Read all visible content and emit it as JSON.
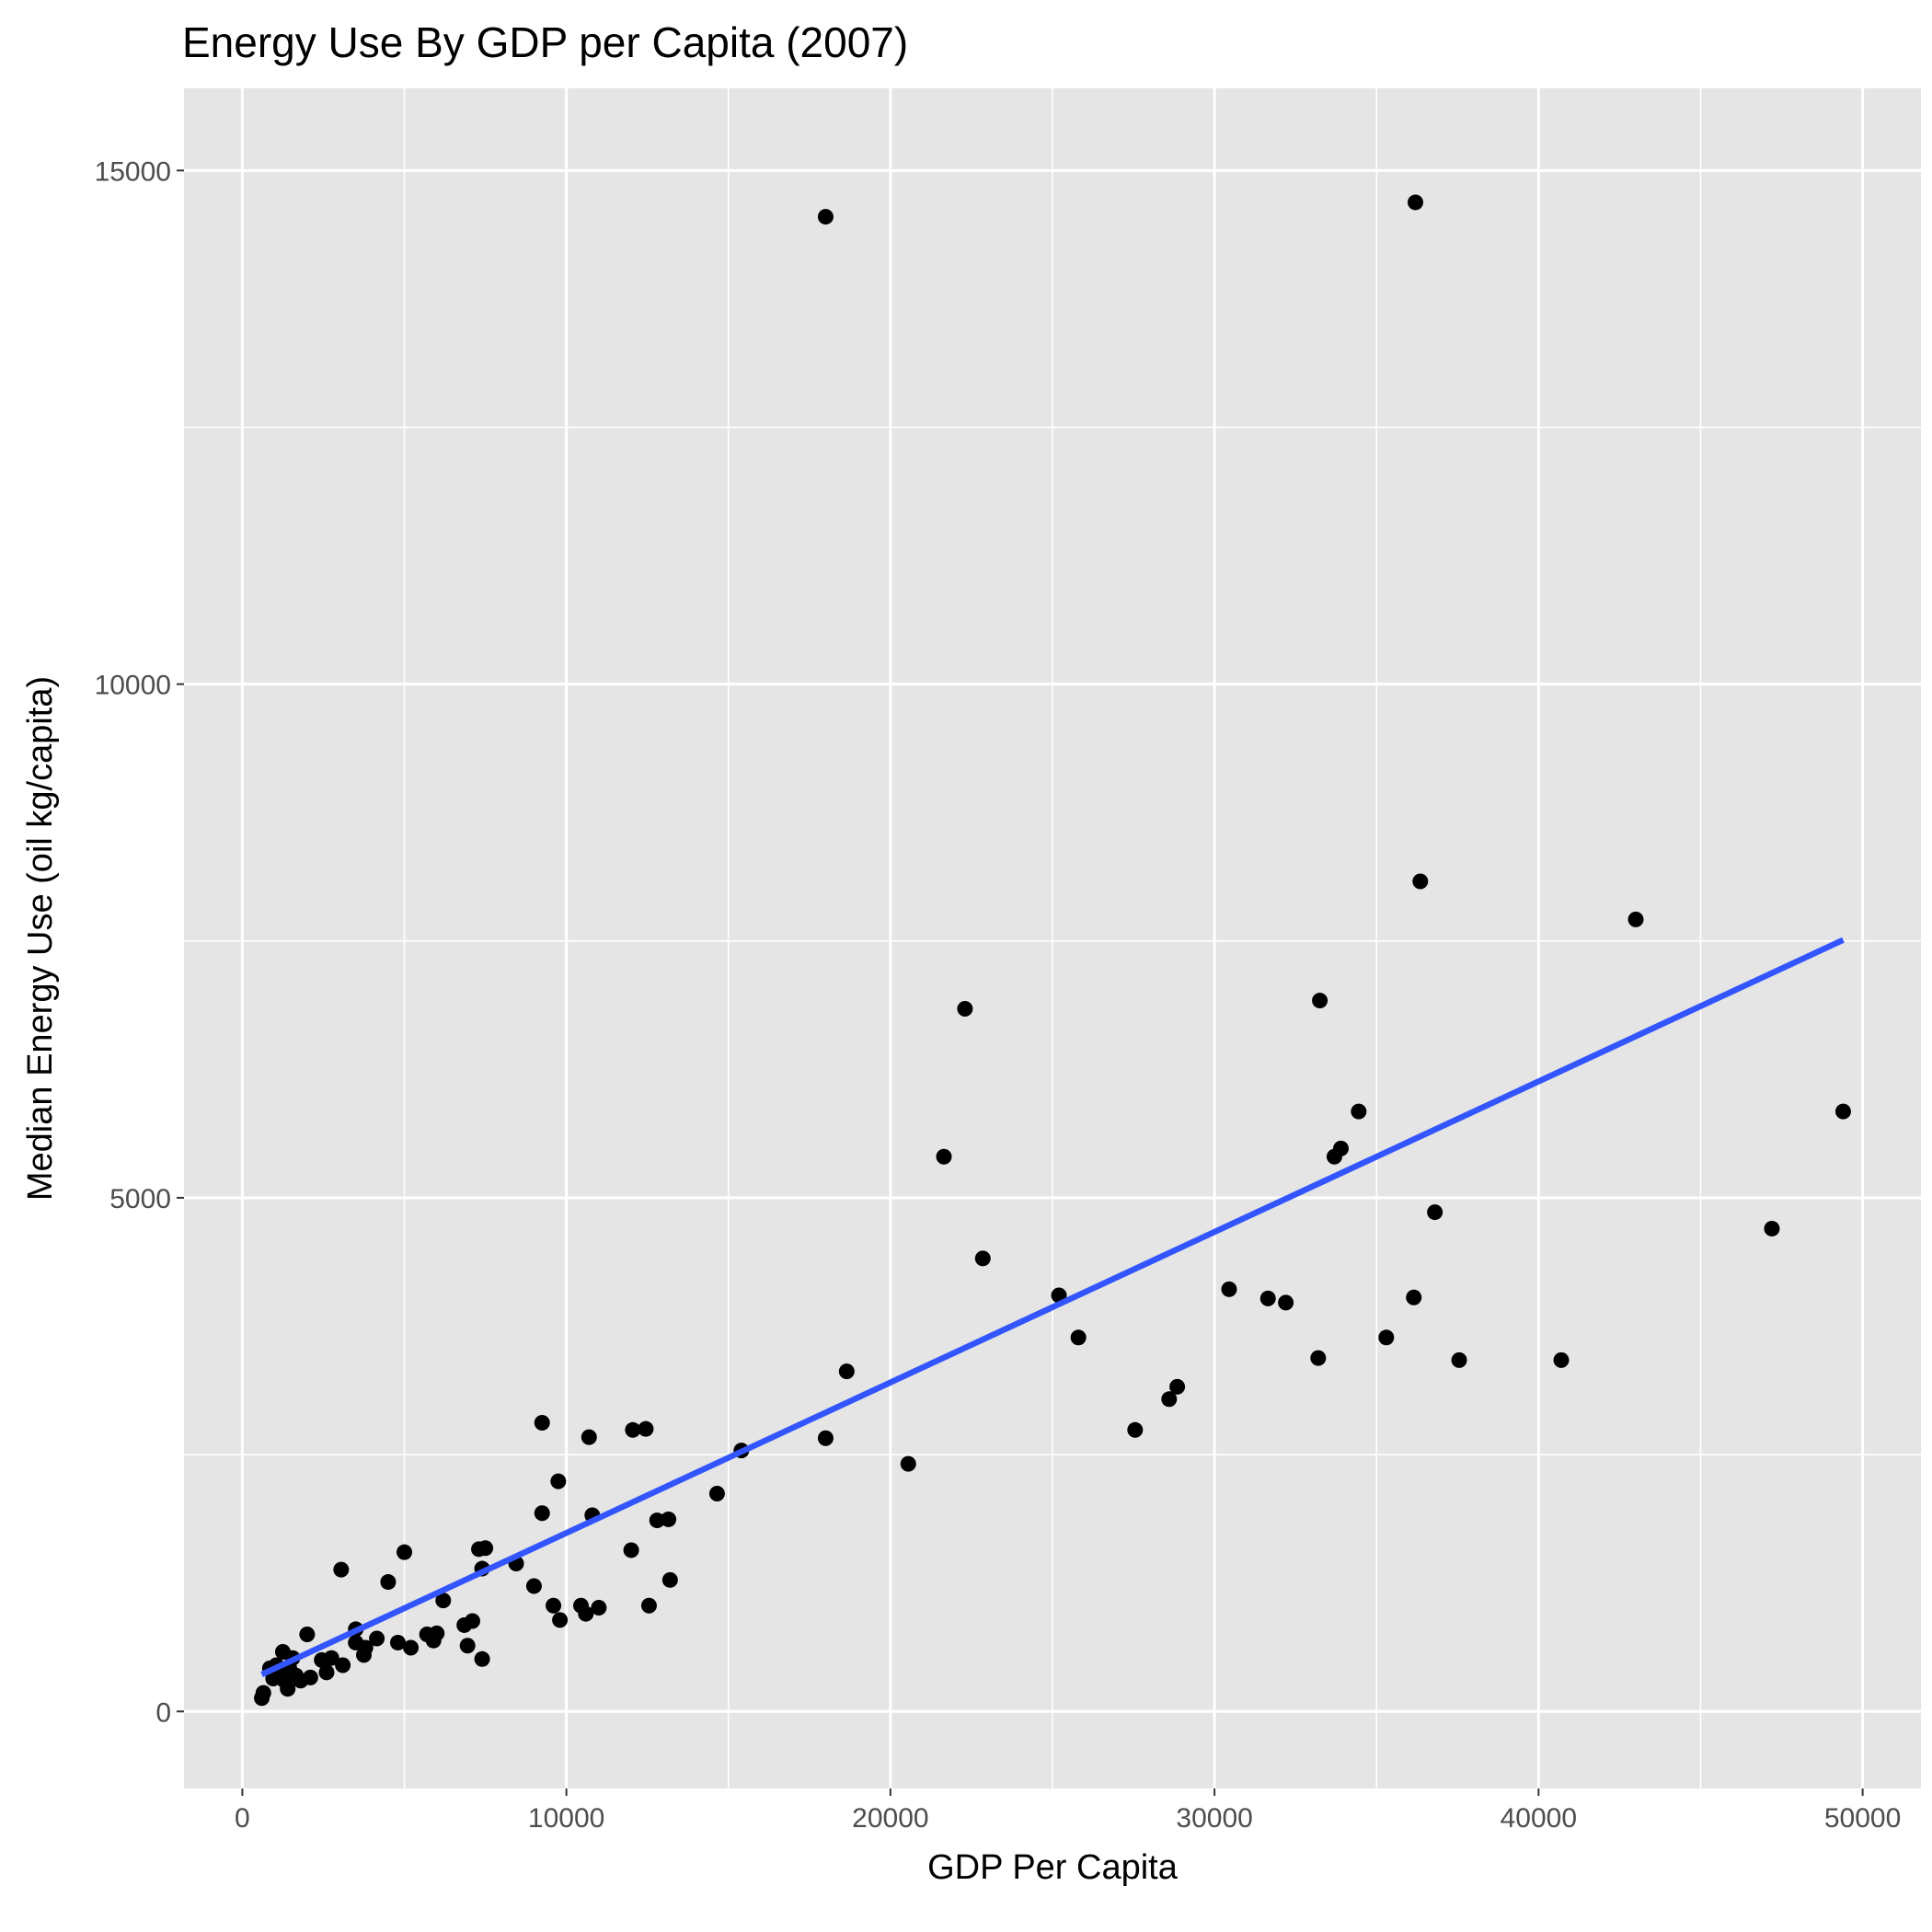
{
  "chart_data": {
    "type": "scatter",
    "title": "Energy Use By GDP per Capita (2007)",
    "xlabel": "GDP Per Capita",
    "ylabel": "Median Energy Use (oil kg/capita)",
    "xlim": [
      -1800,
      51800
    ],
    "ylim": [
      -750,
      15800
    ],
    "x_ticks": [
      0,
      10000,
      20000,
      30000,
      40000,
      50000
    ],
    "y_ticks": [
      0,
      5000,
      10000,
      15000
    ],
    "x_tick_labels": [
      "0",
      "10000",
      "20000",
      "30000",
      "40000",
      "50000"
    ],
    "y_tick_labels": [
      "0",
      "5000",
      "10000",
      "15000"
    ],
    "grid": true,
    "legend": "none",
    "colors": {
      "panel": "#e5e5e5",
      "grid": "#ffffff",
      "points": "#000000",
      "trend": "#3355ff"
    },
    "points": [
      [
        600,
        130
      ],
      [
        650,
        180
      ],
      [
        850,
        420
      ],
      [
        950,
        320
      ],
      [
        1050,
        450
      ],
      [
        1150,
        380
      ],
      [
        1250,
        580
      ],
      [
        1300,
        300
      ],
      [
        1400,
        220
      ],
      [
        1450,
        420
      ],
      [
        1550,
        520
      ],
      [
        1650,
        350
      ],
      [
        1800,
        300
      ],
      [
        2000,
        750
      ],
      [
        2100,
        330
      ],
      [
        2450,
        500
      ],
      [
        2600,
        380
      ],
      [
        2750,
        520
      ],
      [
        3100,
        450
      ],
      [
        3050,
        1380
      ],
      [
        3500,
        800
      ],
      [
        3500,
        670
      ],
      [
        3750,
        550
      ],
      [
        3800,
        620
      ],
      [
        4150,
        710
      ],
      [
        4500,
        1260
      ],
      [
        4800,
        670
      ],
      [
        5000,
        1550
      ],
      [
        5200,
        620
      ],
      [
        5700,
        750
      ],
      [
        5900,
        690
      ],
      [
        6000,
        760
      ],
      [
        6200,
        1080
      ],
      [
        6850,
        840
      ],
      [
        6950,
        640
      ],
      [
        7100,
        880
      ],
      [
        7300,
        1580
      ],
      [
        7400,
        1390
      ],
      [
        7500,
        1590
      ],
      [
        7400,
        510
      ],
      [
        8450,
        1440
      ],
      [
        9000,
        1220
      ],
      [
        9250,
        1930
      ],
      [
        9250,
        2810
      ],
      [
        9600,
        1030
      ],
      [
        9750,
        2240
      ],
      [
        9800,
        890
      ],
      [
        10450,
        1030
      ],
      [
        10600,
        950
      ],
      [
        10700,
        2670
      ],
      [
        10800,
        1910
      ],
      [
        11000,
        1010
      ],
      [
        12000,
        1570
      ],
      [
        12050,
        2740
      ],
      [
        12450,
        2750
      ],
      [
        12550,
        1030
      ],
      [
        12800,
        1860
      ],
      [
        13150,
        1870
      ],
      [
        13200,
        1280
      ],
      [
        14650,
        2120
      ],
      [
        15400,
        2540
      ],
      [
        18000,
        14550
      ],
      [
        18000,
        2660
      ],
      [
        18650,
        3310
      ],
      [
        20550,
        2410
      ],
      [
        21650,
        5400
      ],
      [
        22300,
        6840
      ],
      [
        22850,
        4410
      ],
      [
        25200,
        4050
      ],
      [
        25800,
        3640
      ],
      [
        27550,
        2740
      ],
      [
        28600,
        3040
      ],
      [
        28850,
        3160
      ],
      [
        30450,
        4110
      ],
      [
        31650,
        4020
      ],
      [
        32200,
        3980
      ],
      [
        33200,
        3440
      ],
      [
        33250,
        6920
      ],
      [
        33700,
        5400
      ],
      [
        33900,
        5480
      ],
      [
        34450,
        5840
      ],
      [
        35300,
        3640
      ],
      [
        36150,
        4030
      ],
      [
        36200,
        14690
      ],
      [
        36350,
        8080
      ],
      [
        36800,
        4860
      ],
      [
        37550,
        3420
      ],
      [
        40700,
        3420
      ],
      [
        43000,
        7710
      ],
      [
        47200,
        4700
      ],
      [
        49400,
        5840
      ]
    ],
    "trend_line": {
      "x": [
        600,
        49400
      ],
      "y": [
        360,
        7510
      ]
    }
  }
}
